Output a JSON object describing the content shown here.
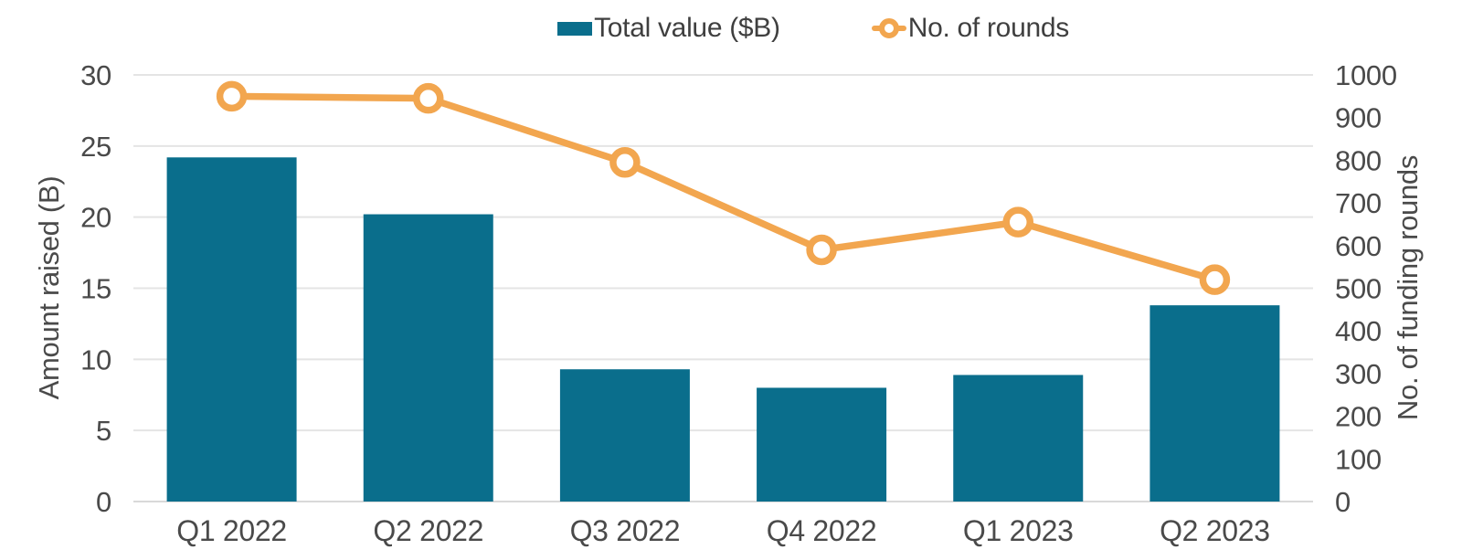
{
  "legend": {
    "items": [
      {
        "label": "Total value ($B)",
        "swatch": "bar"
      },
      {
        "label": "No. of rounds",
        "swatch": "line-marker"
      }
    ]
  },
  "colors": {
    "bar": "#0a6e8c",
    "line": "#f2a64f",
    "marker_fill": "#ffffff",
    "grid": "#e4e4e4",
    "axis_line": "#d9d9d9",
    "text": "#4a4a4a",
    "legend_text": "#3f3f3f",
    "background": "#ffffff"
  },
  "chart_data": {
    "type": "combo-bar-line",
    "categories": [
      "Q1 2022",
      "Q2 2022",
      "Q3 2022",
      "Q4 2022",
      "Q1 2023",
      "Q2 2023"
    ],
    "series": [
      {
        "name": "Total value ($B)",
        "type": "bar",
        "axis": "left",
        "values": [
          24.2,
          20.2,
          9.3,
          8.0,
          8.9,
          13.8
        ],
        "color": "#0a6e8c"
      },
      {
        "name": "No. of rounds",
        "type": "line",
        "axis": "right",
        "values": [
          950,
          945,
          795,
          590,
          655,
          520
        ],
        "color": "#f2a64f",
        "marker": "open-circle"
      }
    ],
    "left_axis": {
      "label": "Amount raised (B)",
      "min": 0,
      "max": 30,
      "ticks": [
        0,
        5,
        10,
        15,
        20,
        25,
        30
      ]
    },
    "right_axis": {
      "label": "No. of funding rounds",
      "min": 0,
      "max": 1000,
      "ticks": [
        0,
        100,
        200,
        300,
        400,
        500,
        600,
        700,
        800,
        900,
        1000
      ]
    },
    "grid": true,
    "legend_position": "top"
  }
}
